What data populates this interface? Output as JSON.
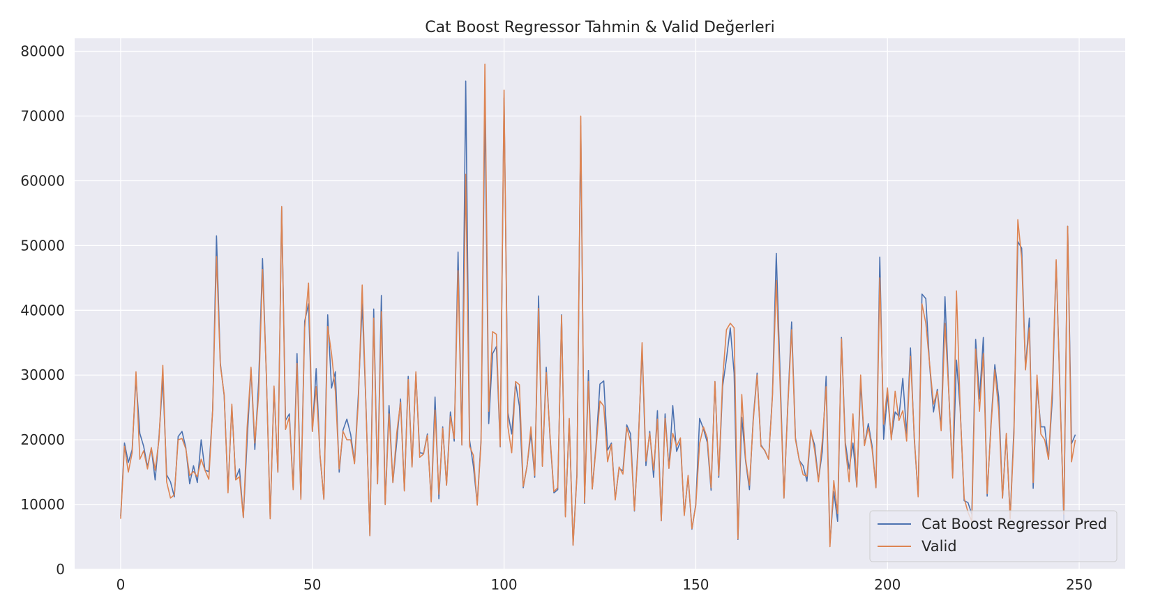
{
  "chart_data": {
    "type": "line",
    "title": "Cat Boost Regressor Tahmin & Valid Değerleri",
    "xlabel": "",
    "ylabel": "",
    "xlim": [
      -12,
      262
    ],
    "ylim": [
      0,
      82000
    ],
    "x_ticks": [
      0,
      50,
      100,
      150,
      200,
      250
    ],
    "y_ticks": [
      0,
      10000,
      20000,
      30000,
      40000,
      50000,
      60000,
      70000,
      80000
    ],
    "grid": true,
    "legend_position": "lower-right",
    "series": [
      {
        "name": "Cat Boost Regressor Pred",
        "color": "#4c72b0",
        "values": [
          8200,
          19500,
          16500,
          18500,
          29500,
          21000,
          19000,
          15800,
          18700,
          13800,
          20500,
          29500,
          14600,
          13500,
          11200,
          20500,
          21300,
          18800,
          13200,
          16000,
          13400,
          20000,
          15300,
          15100,
          24600,
          51500,
          31800,
          26800,
          12200,
          25200,
          14000,
          15500,
          8000,
          20000,
          31000,
          18500,
          29000,
          48000,
          30000,
          8000,
          28000,
          15000,
          56000,
          23000,
          24000,
          12500,
          33300,
          11000,
          38300,
          41000,
          21300,
          31000,
          17500,
          10900,
          39300,
          28000,
          30500,
          15000,
          21500,
          23200,
          20800,
          16500,
          27000,
          41000,
          25000,
          5200,
          40200,
          13200,
          42300,
          10000,
          25300,
          13400,
          19600,
          26300,
          12200,
          29800,
          15900,
          30200,
          18000,
          17900,
          20900,
          10500,
          26600,
          10900,
          22000,
          13000,
          24300,
          19800,
          49000,
          19200,
          75400,
          20000,
          15900,
          10200,
          20000,
          72000,
          22500,
          33300,
          34400,
          18900,
          72800,
          24200,
          20900,
          28800,
          25200,
          12600,
          16000,
          21000,
          14200,
          42200,
          16000,
          31200,
          20200,
          11800,
          12300,
          39300,
          8300,
          23100,
          3800,
          14600,
          68500,
          10200,
          30700,
          12400,
          19300,
          28600,
          29100,
          18400,
          19500,
          10900,
          15600,
          15200,
          22300,
          20900,
          9000,
          19600,
          34100,
          16000,
          21300,
          14200,
          24500,
          7500,
          24000,
          15600,
          25300,
          18200,
          19700,
          8500,
          14300,
          6200,
          10000,
          23300,
          21700,
          19600,
          12200,
          29000,
          14200,
          28200,
          32500,
          37300,
          30300,
          4600,
          23500,
          16700,
          12300,
          23400,
          30300,
          19200,
          18300,
          17000,
          27000,
          48800,
          30000,
          11000,
          25400,
          38200,
          20300,
          16800,
          16000,
          13600,
          21200,
          19200,
          13800,
          18200,
          29800,
          4000,
          12000,
          7400,
          35800,
          19600,
          15500,
          19500,
          12700,
          28800,
          19200,
          22500,
          19000,
          12600,
          48200,
          20100,
          27000,
          20300,
          24300,
          23600,
          29500,
          20800,
          34200,
          20000,
          11500,
          42500,
          41800,
          31400,
          24300,
          27800,
          22000,
          42100,
          27200,
          14400,
          32300,
          24400,
          10600,
          10300,
          8500,
          35500,
          26300,
          35800,
          11300,
          22500,
          31600,
          26600,
          11000,
          20800,
          8000,
          22000,
          50600,
          49600,
          31000,
          38800,
          12500,
          28500,
          22000,
          22000,
          17000,
          26400,
          47500,
          27500,
          7500,
          53000,
          19400,
          20800
        ]
      },
      {
        "name": "Valid",
        "color": "#dd8452",
        "values": [
          7800,
          19000,
          15000,
          18000,
          30500,
          17000,
          18300,
          15500,
          18800,
          15300,
          20000,
          31500,
          13500,
          11000,
          11500,
          20000,
          20200,
          18600,
          14500,
          15100,
          14300,
          17000,
          15300,
          13900,
          24600,
          48300,
          31500,
          27000,
          11800,
          25500,
          13800,
          14300,
          8000,
          22000,
          31200,
          19500,
          27000,
          46300,
          30200,
          7800,
          28300,
          15000,
          56000,
          21600,
          23500,
          12300,
          31800,
          10800,
          37300,
          44200,
          21300,
          28200,
          17700,
          10800,
          37500,
          33300,
          27500,
          15500,
          21300,
          20000,
          20000,
          16300,
          26000,
          43900,
          24800,
          5200,
          38800,
          13200,
          39800,
          10000,
          24000,
          13400,
          21000,
          25800,
          12100,
          29300,
          15800,
          30500,
          17300,
          17800,
          20700,
          10400,
          24600,
          11600,
          21800,
          13000,
          23600,
          20200,
          46100,
          19200,
          61000,
          19000,
          17600,
          9900,
          19600,
          78000,
          24400,
          36700,
          36300,
          19000,
          74000,
          22000,
          18000,
          29000,
          28500,
          12800,
          15900,
          22000,
          14500,
          40300,
          15900,
          30400,
          20500,
          12000,
          12600,
          39200,
          8100,
          23300,
          3700,
          14300,
          70000,
          10300,
          29000,
          12400,
          18800,
          26000,
          25200,
          16600,
          19300,
          10700,
          15800,
          14700,
          21900,
          19700,
          9100,
          19000,
          35000,
          16700,
          21000,
          15300,
          23200,
          7500,
          23300,
          15600,
          21000,
          19000,
          20300,
          8300,
          14500,
          6300,
          9800,
          19400,
          22000,
          20300,
          12600,
          29000,
          14500,
          29300,
          37000,
          38000,
          37300,
          4700,
          27000,
          17000,
          13000,
          23000,
          30000,
          19000,
          18400,
          17000,
          26700,
          44600,
          28400,
          11000,
          25000,
          37000,
          20000,
          16900,
          14600,
          14400,
          21500,
          18400,
          13500,
          19800,
          28200,
          3500,
          13700,
          8600,
          35600,
          18900,
          13500,
          24000,
          12700,
          30000,
          19100,
          21900,
          18500,
          12600,
          45000,
          22400,
          28000,
          20000,
          27500,
          23000,
          24500,
          19800,
          32900,
          20400,
          11200,
          41000,
          38000,
          31700,
          25500,
          27500,
          21400,
          38000,
          27200,
          14100,
          43000,
          24200,
          11000,
          8800,
          7400,
          34000,
          24400,
          33300,
          11700,
          22000,
          30800,
          24500,
          11000,
          21000,
          7800,
          21000,
          54000,
          48000,
          30800,
          37300,
          13400,
          30000,
          20900,
          20000,
          17000,
          28000,
          47800,
          26700,
          8500,
          53000,
          16600,
          20000
        ]
      }
    ]
  }
}
